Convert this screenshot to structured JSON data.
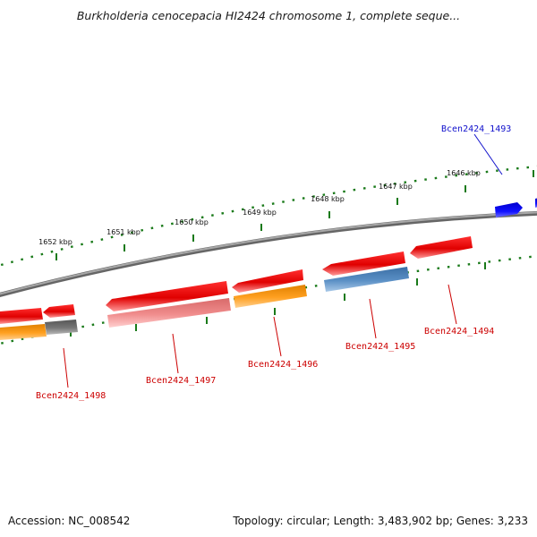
{
  "title": "Burkholderia cenocepacia HI2424 chromosome 1, complete seque...",
  "footer": {
    "accession": "Accession: NC_008542",
    "topology": "Topology: circular; Length: 3,483,902 bp; Genes: 3,233"
  },
  "scale_ticks": [
    "1646 kbp",
    "1647 kbp",
    "1648 kbp",
    "1649 kbp",
    "1650 kbp",
    "1651 kbp",
    "1652 kbp"
  ],
  "gene_labels": [
    "Bcen2424_1493",
    "Bcen2424_1494",
    "Bcen2424_1495",
    "Bcen2424_1496",
    "Bcen2424_1497",
    "Bcen2424_1498"
  ],
  "colors": {
    "gene_red": "#ee0000",
    "gene_pink": "#f08080",
    "gene_orange": "#ff9900",
    "gene_steelblue": "#4a7fb5",
    "gene_gray": "#707070",
    "gene_blue": "#0000ee",
    "backbone": "#808080",
    "scale_green": "#1a7a1a",
    "label_red": "#cc0000",
    "label_blue": "#1010cc"
  }
}
